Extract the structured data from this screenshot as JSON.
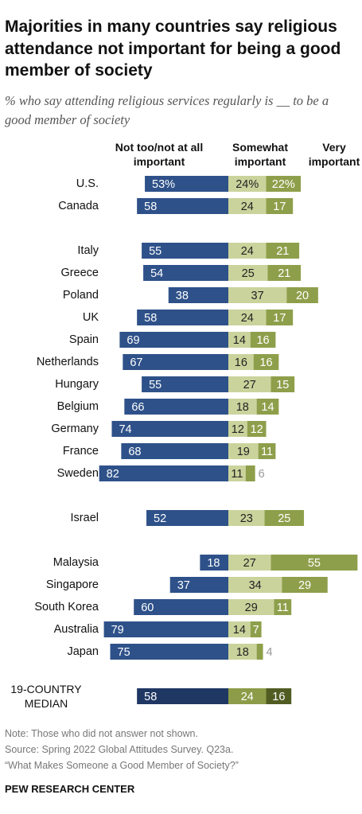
{
  "title": "Majorities in many countries say religious attendance not important for being a good member of society",
  "subtitle": "% who say attending religious services regularly is __ to be a good member of society",
  "chart_data": {
    "type": "diverging_bar",
    "categories": [
      "U.S.",
      "Canada",
      "Italy",
      "Greece",
      "Poland",
      "UK",
      "Spain",
      "Netherlands",
      "Hungary",
      "Belgium",
      "Germany",
      "France",
      "Sweden",
      "Israel",
      "Malaysia",
      "Singapore",
      "South Korea",
      "Australia",
      "Japan",
      "19-COUNTRY MEDIAN"
    ],
    "series": [
      {
        "name": "Not too/not at all important",
        "color": "#2e5189",
        "highlight_color": "#1f3763",
        "values": [
          53,
          58,
          55,
          54,
          38,
          58,
          69,
          67,
          55,
          66,
          74,
          68,
          82,
          52,
          18,
          37,
          60,
          79,
          75,
          58
        ],
        "value_labels": [
          "53%",
          "58",
          "55",
          "54",
          "38",
          "58",
          "69",
          "67",
          "55",
          "66",
          "74",
          "68",
          "82",
          "52",
          "18",
          "37",
          "60",
          "79",
          "75",
          "58"
        ]
      },
      {
        "name": "Somewhat important",
        "color": "#cbd39c",
        "highlight_color": "#8c9c48",
        "values": [
          24,
          24,
          24,
          25,
          37,
          24,
          14,
          16,
          27,
          18,
          12,
          19,
          11,
          23,
          27,
          34,
          29,
          14,
          18,
          24
        ],
        "value_labels": [
          "24%",
          "24",
          "24",
          "25",
          "37",
          "24",
          "14",
          "16",
          "27",
          "18",
          "12",
          "19",
          "11",
          "23",
          "27",
          "34",
          "29",
          "14",
          "18",
          "24"
        ]
      },
      {
        "name": "Very important",
        "color": "#8e9f4b",
        "highlight_color": "#505d22",
        "values": [
          22,
          17,
          21,
          21,
          20,
          17,
          16,
          16,
          15,
          14,
          12,
          11,
          6,
          25,
          55,
          29,
          11,
          7,
          4,
          16
        ],
        "value_labels": [
          "22%",
          "17",
          "21",
          "21",
          "20",
          "17",
          "16",
          "16",
          "15",
          "14",
          "12",
          "11",
          "6",
          "25",
          "55",
          "29",
          "11",
          "7",
          "4",
          "16"
        ]
      }
    ]
  },
  "notes": [
    "Note: Those who did not answer not shown.",
    "Source: Spring 2022 Global Attitudes Survey. Q23a.",
    "“What Makes Someone a Good Member of Society?”"
  ],
  "source": "PEW RESEARCH CENTER"
}
